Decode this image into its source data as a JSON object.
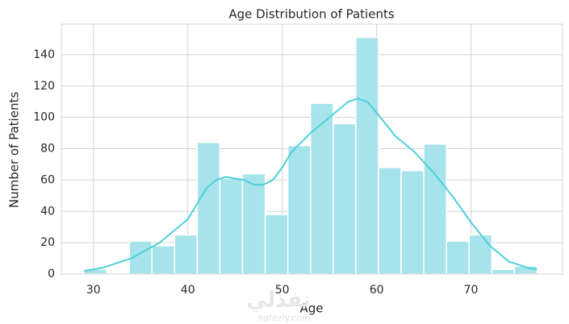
{
  "chart_data": {
    "type": "histogram",
    "title": "Age Distribution of Patients",
    "x_label": "Age",
    "y_label": "Number of Patients",
    "bins": [
      29,
      31.4,
      33.8,
      36.2,
      38.6,
      41,
      43.4,
      45.8,
      48.2,
      50.6,
      53,
      55.4,
      57.8,
      60.2,
      62.6,
      65,
      67.4,
      69.8,
      72.2,
      74.6,
      77
    ],
    "values": [
      3,
      0,
      21,
      18,
      25,
      84,
      61,
      64,
      38,
      82,
      109,
      96,
      151,
      68,
      66,
      83,
      21,
      25,
      3,
      5
    ],
    "color": "#a6e3ea",
    "kde": {
      "color": "#4fcfd8",
      "x": [
        29,
        31,
        34,
        37,
        40,
        41,
        42,
        43,
        44,
        46,
        47,
        48,
        49,
        50,
        51,
        53,
        55,
        57,
        58,
        59,
        60,
        62,
        64,
        66,
        68,
        70,
        72,
        74,
        76,
        77
      ],
      "values": [
        2,
        4,
        10,
        20,
        35,
        45,
        55,
        60,
        62,
        60,
        57,
        57,
        60,
        68,
        78,
        90,
        100,
        110,
        112,
        110,
        103,
        88,
        78,
        65,
        50,
        33,
        18,
        8,
        4,
        3
      ]
    },
    "xlim": [
      26.6,
      79.7
    ],
    "ylim": [
      0,
      159.5
    ],
    "xticks": [
      30,
      40,
      50,
      60,
      70
    ],
    "yticks": [
      0,
      20,
      40,
      60,
      80,
      100,
      120,
      140
    ],
    "grid": true,
    "watermark": [
      "نفذلي",
      "nafezly.com"
    ]
  }
}
